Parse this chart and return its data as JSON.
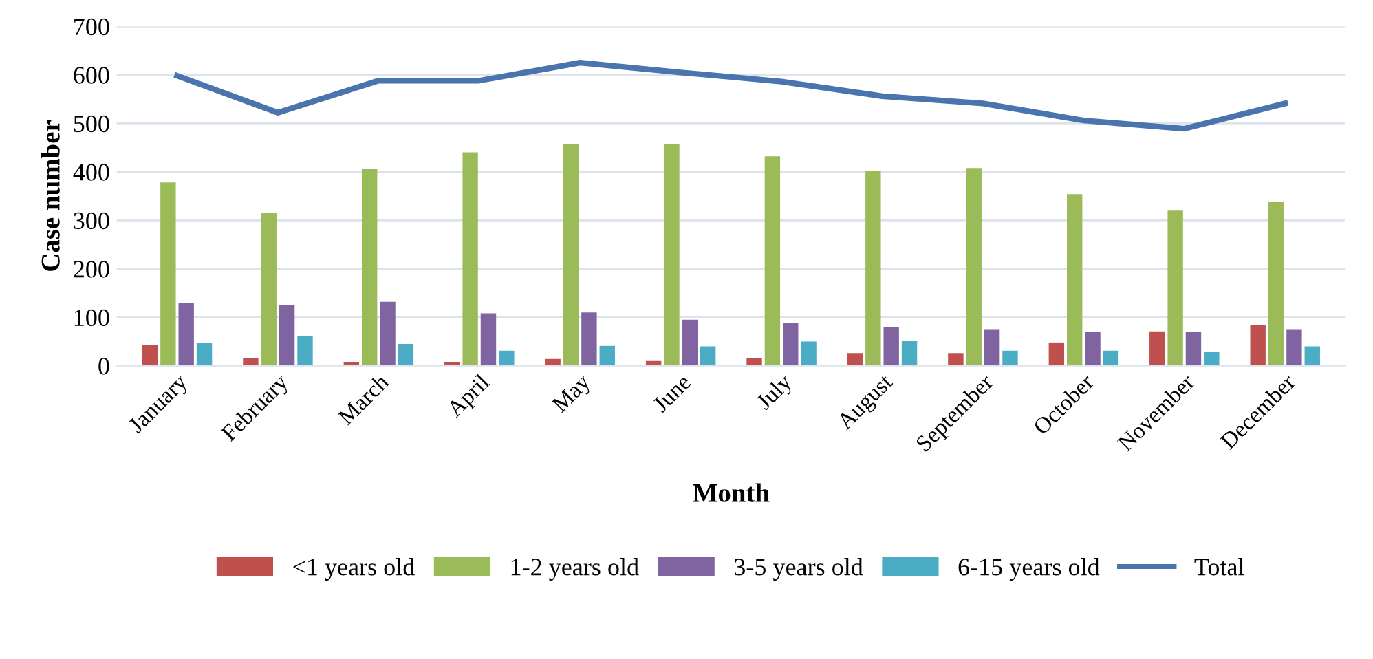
{
  "chart_data": {
    "type": "bar",
    "xlabel": "Month",
    "ylabel": "Case number",
    "categories": [
      "January",
      "February",
      "March",
      "April",
      "May",
      "June",
      "July",
      "August",
      "September",
      "October",
      "November",
      "December"
    ],
    "series": [
      {
        "name": "<1 years old",
        "color": "#c0504d",
        "values": [
          42,
          16,
          8,
          8,
          14,
          10,
          16,
          26,
          26,
          48,
          71,
          84
        ]
      },
      {
        "name": "1-2 years old",
        "color": "#9bbb59",
        "values": [
          378,
          315,
          406,
          440,
          458,
          458,
          432,
          402,
          408,
          354,
          320,
          338
        ]
      },
      {
        "name": "3-5 years old",
        "color": "#8064a2",
        "values": [
          129,
          126,
          132,
          108,
          110,
          95,
          89,
          79,
          74,
          69,
          69,
          74
        ]
      },
      {
        "name": "6-15 years old",
        "color": "#4bacc6",
        "values": [
          47,
          62,
          45,
          31,
          41,
          40,
          50,
          52,
          31,
          31,
          29,
          40
        ]
      },
      {
        "name": "Total",
        "type": "line",
        "color": "#4a74ad",
        "values": [
          598,
          522,
          588,
          588,
          625,
          605,
          586,
          556,
          541,
          506,
          489,
          541
        ]
      }
    ],
    "ylim": [
      0,
      700
    ],
    "yticks": [
      0,
      100,
      200,
      300,
      400,
      500,
      600,
      700
    ],
    "grid": "y",
    "legend": "bottom"
  }
}
